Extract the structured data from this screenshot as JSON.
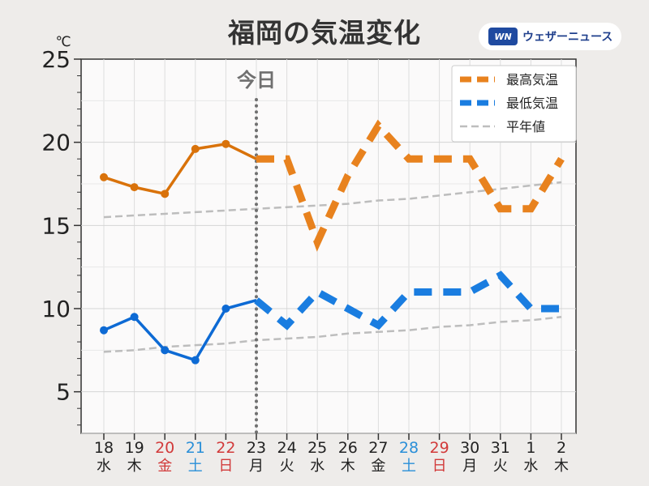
{
  "title": "福岡の気温変化",
  "brand": {
    "logo_text": "WN",
    "name": "ウェザーニュース"
  },
  "colors": {
    "max": "#e8821e",
    "min": "#1a7de0",
    "max_observed": "#d9720a",
    "min_observed": "#0d6ad4",
    "normal": "#bdbdbd",
    "today_line": "#707070",
    "saturday": "#2a8fd8",
    "holiday": "#d23a3a",
    "weekday": "#222222"
  },
  "chart_data": {
    "type": "line",
    "title": "福岡の気温変化",
    "ylabel": "℃",
    "ylim": [
      2.5,
      25
    ],
    "yticks": [
      5,
      10,
      15,
      20,
      25
    ],
    "grid": true,
    "legend_position": "top-right",
    "today_label": "今日",
    "today_x": "23",
    "observed_until": "23",
    "x_dates": [
      "18",
      "19",
      "20",
      "21",
      "22",
      "23",
      "24",
      "25",
      "26",
      "27",
      "28",
      "29",
      "30",
      "31",
      "1",
      "2"
    ],
    "x_weekdays": [
      "水",
      "木",
      "金",
      "土",
      "日",
      "月",
      "火",
      "水",
      "木",
      "金",
      "土",
      "日",
      "月",
      "火",
      "水",
      "木"
    ],
    "x_day_type": [
      "weekday",
      "weekday",
      "holiday",
      "saturday",
      "holiday",
      "weekday",
      "weekday",
      "weekday",
      "weekday",
      "weekday",
      "saturday",
      "holiday",
      "weekday",
      "weekday",
      "weekday",
      "weekday"
    ],
    "series": [
      {
        "name": "最高気温",
        "key": "max",
        "values": [
          17.9,
          17.3,
          16.9,
          19.6,
          19.9,
          19.0,
          19.0,
          14.0,
          18.0,
          21.0,
          19.0,
          19.0,
          19.0,
          16.0,
          16.0,
          19.0
        ]
      },
      {
        "name": "最低気温",
        "key": "min",
        "values": [
          8.7,
          9.5,
          7.5,
          6.9,
          10.0,
          10.5,
          9.0,
          11.0,
          10.0,
          9.0,
          11.0,
          11.0,
          11.0,
          12.0,
          10.0,
          10.0
        ]
      },
      {
        "name": "平年値",
        "key": "normal_max",
        "values": [
          15.5,
          15.6,
          15.7,
          15.8,
          15.9,
          16.0,
          16.1,
          16.2,
          16.3,
          16.5,
          16.6,
          16.8,
          17.0,
          17.2,
          17.4,
          17.6
        ]
      },
      {
        "name": "",
        "key": "normal_min",
        "values": [
          7.4,
          7.5,
          7.7,
          7.8,
          7.9,
          8.1,
          8.2,
          8.3,
          8.5,
          8.6,
          8.7,
          8.9,
          9.0,
          9.2,
          9.3,
          9.5
        ]
      }
    ]
  }
}
